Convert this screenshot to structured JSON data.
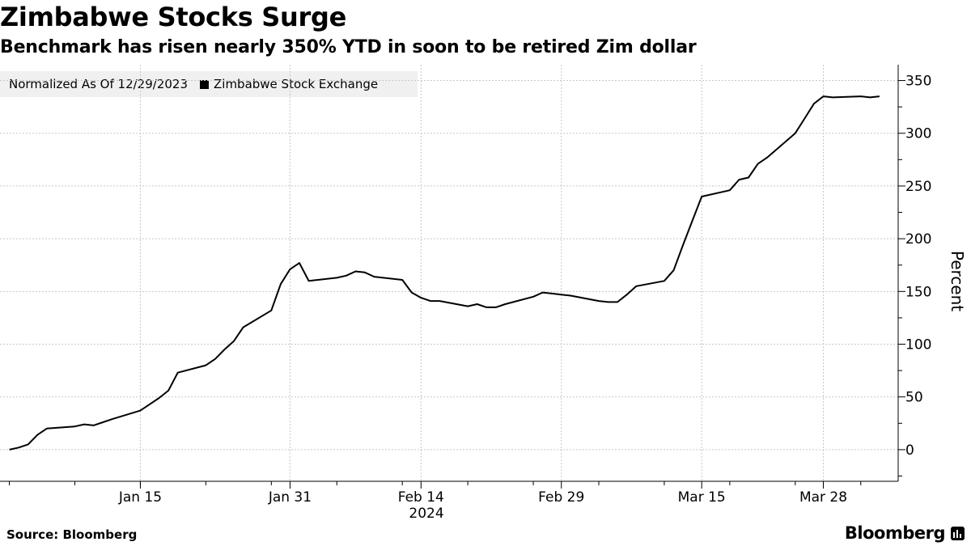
{
  "chart_data": {
    "type": "line",
    "title": "Zimbabwe Stocks Surge",
    "subtitle": "Benchmark has risen nearly 350% YTD in soon to be retired Zim dollar",
    "legend_note": "Normalized As Of 12/29/2023",
    "legend_position": "top-left",
    "ylabel": "Percent",
    "ylim": [
      -30,
      365
    ],
    "y_ticks": [
      0,
      50,
      100,
      150,
      200,
      250,
      300,
      350
    ],
    "x_ticks": [
      {
        "date": "2024-01-15",
        "label": "Jan 15"
      },
      {
        "date": "2024-01-31",
        "label": "Jan 31"
      },
      {
        "date": "2024-02-14",
        "label": "Feb 14"
      },
      {
        "date": "2024-02-29",
        "label": "Feb 29"
      },
      {
        "date": "2024-03-15",
        "label": "Mar 15"
      },
      {
        "date": "2024-03-28",
        "label": "Mar 28"
      }
    ],
    "x_year_label": "2024",
    "xlim": [
      "2023-12-31",
      "2024-04-05"
    ],
    "grid": true,
    "series": [
      {
        "name": "Zimbabwe Stock Exchange",
        "color": "#000000",
        "x": [
          "2024-01-01",
          "2024-01-02",
          "2024-01-03",
          "2024-01-04",
          "2024-01-05",
          "2024-01-08",
          "2024-01-09",
          "2024-01-10",
          "2024-01-11",
          "2024-01-12",
          "2024-01-15",
          "2024-01-16",
          "2024-01-17",
          "2024-01-18",
          "2024-01-19",
          "2024-01-22",
          "2024-01-23",
          "2024-01-24",
          "2024-01-25",
          "2024-01-26",
          "2024-01-29",
          "2024-01-30",
          "2024-01-31",
          "2024-02-01",
          "2024-02-02",
          "2024-02-05",
          "2024-02-06",
          "2024-02-07",
          "2024-02-08",
          "2024-02-09",
          "2024-02-12",
          "2024-02-13",
          "2024-02-14",
          "2024-02-15",
          "2024-02-16",
          "2024-02-19",
          "2024-02-20",
          "2024-02-21",
          "2024-02-22",
          "2024-02-23",
          "2024-02-26",
          "2024-02-27",
          "2024-02-28",
          "2024-02-29",
          "2024-03-01",
          "2024-03-04",
          "2024-03-05",
          "2024-03-06",
          "2024-03-07",
          "2024-03-08",
          "2024-03-11",
          "2024-03-12",
          "2024-03-13",
          "2024-03-14",
          "2024-03-15",
          "2024-03-18",
          "2024-03-19",
          "2024-03-20",
          "2024-03-21",
          "2024-03-22",
          "2024-03-25",
          "2024-03-26",
          "2024-03-27",
          "2024-03-28",
          "2024-03-29",
          "2024-04-01",
          "2024-04-02",
          "2024-04-03"
        ],
        "y": [
          0,
          2,
          5,
          14,
          20,
          22,
          24,
          23,
          26,
          29,
          37,
          43,
          49,
          56,
          73,
          80,
          86,
          95,
          103,
          116,
          132,
          157,
          171,
          177,
          160,
          163,
          165,
          169,
          168,
          164,
          161,
          149,
          144,
          141,
          141,
          136,
          138,
          135,
          135,
          138,
          145,
          149,
          148,
          147,
          146,
          141,
          140,
          140,
          147,
          155,
          160,
          170,
          194,
          217,
          240,
          246,
          256,
          258,
          271,
          277,
          300,
          314,
          328,
          335,
          334,
          335,
          334,
          335
        ]
      }
    ]
  },
  "footer": {
    "source": "Source: Bloomberg",
    "brand": "Bloomberg"
  }
}
